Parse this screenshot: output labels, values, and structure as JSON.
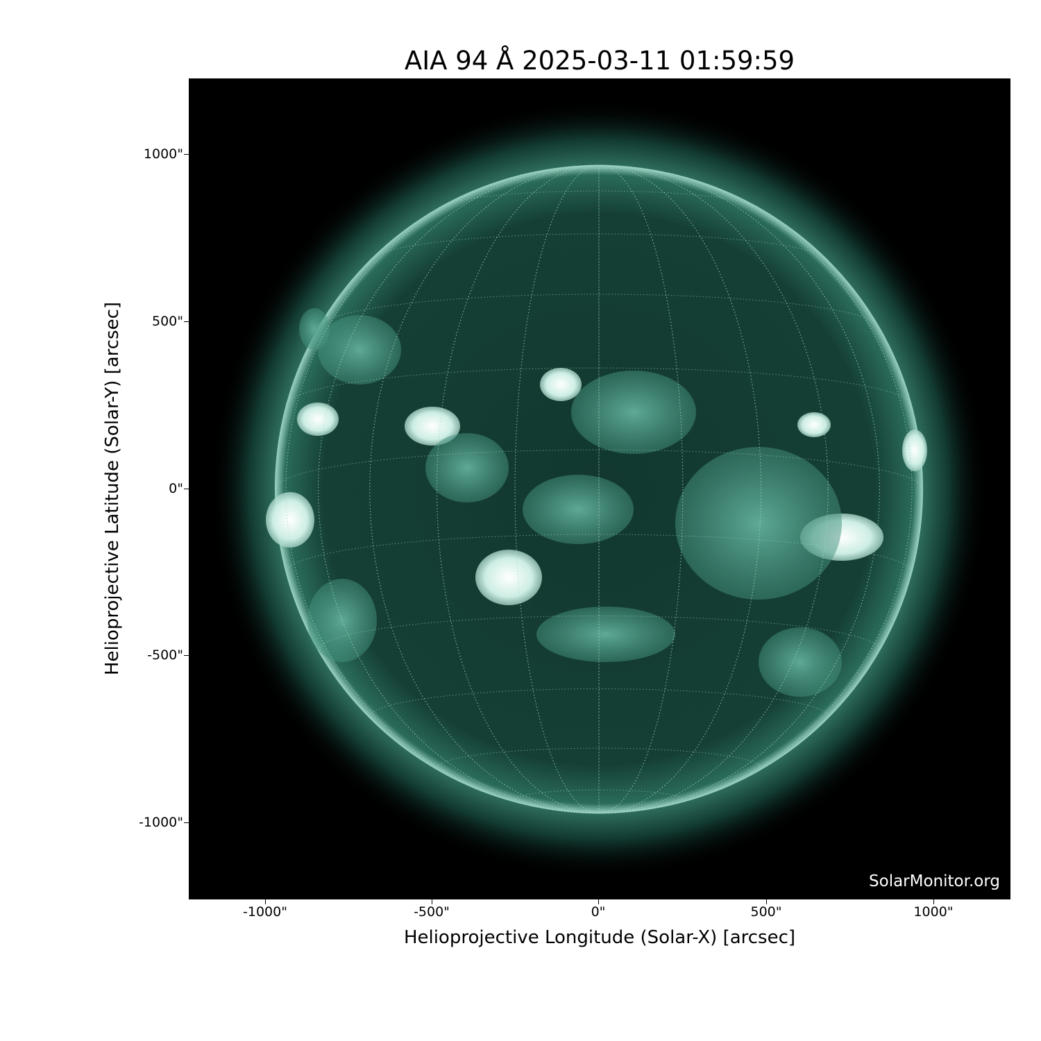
{
  "title": "AIA 94 Å 2025-03-11 01:59:59",
  "axes": {
    "xlabel": "Helioprojective Longitude (Solar-X) [arcsec]",
    "ylabel": "Helioprojective Latitude (Solar-Y) [arcsec]",
    "xticks": [
      "-1000\"",
      "-500\"",
      "0\"",
      "500\"",
      "1000\""
    ],
    "yticks": [
      "1000\"",
      "500\"",
      "0\"",
      "-500\"",
      "-1000\""
    ],
    "xtick_values": [
      -1000,
      -500,
      0,
      500,
      1000
    ],
    "ytick_values": [
      1000,
      500,
      0,
      -500,
      -1000
    ]
  },
  "image": {
    "instrument": "AIA 94 Å",
    "colormap_colors": [
      "#000000",
      "#0f3d33",
      "#2a7a66",
      "#bfe8dc",
      "#ffffff"
    ],
    "grid": "heliographic, dotted, 15° spacing"
  },
  "watermark": "SolarMonitor.org"
}
